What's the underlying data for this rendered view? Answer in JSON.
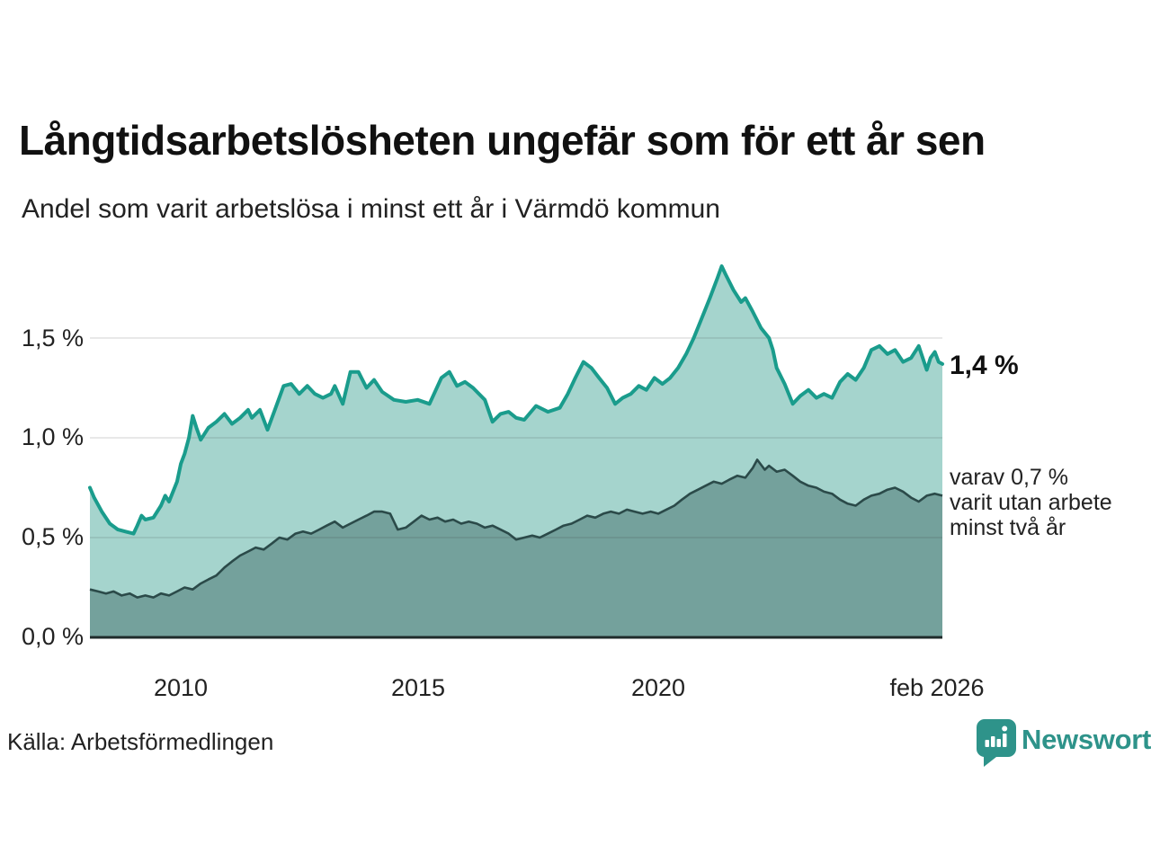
{
  "title": "Långtidsarbetslösheten ungefär som för ett år sen",
  "subtitle": "Andel som varit arbetslösa i minst ett år i Värmdö kommun",
  "source": "Källa: Arbetsförmedlingen",
  "brand": {
    "name": "Newsworthy",
    "color": "#2e938a",
    "icon": "newsworthy-speech-bubble-barchart-icon"
  },
  "annotations": {
    "latest_total": "1,4 %",
    "secondary": [
      "varav 0,7 %",
      "varit utan arbete",
      "minst två år"
    ]
  },
  "colors": {
    "total_line": "#1a9c8c",
    "total_fill": "#a5d4cd",
    "two_year_line": "#2b4a49",
    "two_year_fill": "#74a19c",
    "gridline": "rgba(40,40,40,0.14)",
    "axis_line": "#1f2b2b",
    "text": "#222222"
  },
  "chart_data": {
    "type": "area",
    "title": "Långtidsarbetslösheten ungefär som för ett år sen",
    "subtitle": "Andel som varit arbetslösa i minst ett år i Värmdö kommun",
    "unit": "%",
    "grid": true,
    "x_axis": {
      "range": [
        2008.08,
        2026.08
      ],
      "ticks": [
        {
          "label": "2010",
          "value": 2010
        },
        {
          "label": "2015",
          "value": 2015
        },
        {
          "label": "2020",
          "value": 2020
        },
        {
          "label": "feb 2026",
          "value": 2026.08
        }
      ]
    },
    "y_axis": {
      "range": [
        0,
        1.9
      ],
      "ticks": [
        {
          "label": "0,0 %",
          "value": 0.0
        },
        {
          "label": "0,5 %",
          "value": 0.5
        },
        {
          "label": "1,0 %",
          "value": 1.0
        },
        {
          "label": "1,5 %",
          "value": 1.5
        }
      ]
    },
    "series": [
      {
        "name": "Andel som varit arbetslösa minst ett år",
        "latest_value_label": "1,4 %",
        "points": [
          [
            2008.08,
            0.75
          ],
          [
            2008.17,
            0.7
          ],
          [
            2008.33,
            0.63
          ],
          [
            2008.5,
            0.57
          ],
          [
            2008.67,
            0.54
          ],
          [
            2008.83,
            0.53
          ],
          [
            2009.0,
            0.52
          ],
          [
            2009.08,
            0.56
          ],
          [
            2009.17,
            0.61
          ],
          [
            2009.25,
            0.59
          ],
          [
            2009.42,
            0.6
          ],
          [
            2009.58,
            0.66
          ],
          [
            2009.67,
            0.71
          ],
          [
            2009.75,
            0.68
          ],
          [
            2009.92,
            0.78
          ],
          [
            2010.0,
            0.87
          ],
          [
            2010.08,
            0.92
          ],
          [
            2010.17,
            1.0
          ],
          [
            2010.25,
            1.11
          ],
          [
            2010.33,
            1.05
          ],
          [
            2010.42,
            0.99
          ],
          [
            2010.58,
            1.05
          ],
          [
            2010.75,
            1.08
          ],
          [
            2010.92,
            1.12
          ],
          [
            2011.08,
            1.07
          ],
          [
            2011.25,
            1.1
          ],
          [
            2011.42,
            1.14
          ],
          [
            2011.5,
            1.1
          ],
          [
            2011.67,
            1.14
          ],
          [
            2011.83,
            1.04
          ],
          [
            2012.0,
            1.15
          ],
          [
            2012.17,
            1.26
          ],
          [
            2012.33,
            1.27
          ],
          [
            2012.5,
            1.22
          ],
          [
            2012.67,
            1.26
          ],
          [
            2012.83,
            1.22
          ],
          [
            2013.0,
            1.2
          ],
          [
            2013.17,
            1.22
          ],
          [
            2013.25,
            1.26
          ],
          [
            2013.42,
            1.17
          ],
          [
            2013.58,
            1.33
          ],
          [
            2013.75,
            1.33
          ],
          [
            2013.92,
            1.25
          ],
          [
            2014.08,
            1.29
          ],
          [
            2014.25,
            1.23
          ],
          [
            2014.5,
            1.19
          ],
          [
            2014.75,
            1.18
          ],
          [
            2015.0,
            1.19
          ],
          [
            2015.25,
            1.17
          ],
          [
            2015.5,
            1.3
          ],
          [
            2015.67,
            1.33
          ],
          [
            2015.83,
            1.26
          ],
          [
            2016.0,
            1.28
          ],
          [
            2016.17,
            1.25
          ],
          [
            2016.42,
            1.19
          ],
          [
            2016.58,
            1.08
          ],
          [
            2016.75,
            1.12
          ],
          [
            2016.92,
            1.13
          ],
          [
            2017.08,
            1.1
          ],
          [
            2017.25,
            1.09
          ],
          [
            2017.5,
            1.16
          ],
          [
            2017.75,
            1.13
          ],
          [
            2018.0,
            1.15
          ],
          [
            2018.17,
            1.22
          ],
          [
            2018.33,
            1.3
          ],
          [
            2018.5,
            1.38
          ],
          [
            2018.67,
            1.35
          ],
          [
            2018.83,
            1.3
          ],
          [
            2019.0,
            1.25
          ],
          [
            2019.17,
            1.17
          ],
          [
            2019.33,
            1.2
          ],
          [
            2019.5,
            1.22
          ],
          [
            2019.67,
            1.26
          ],
          [
            2019.83,
            1.24
          ],
          [
            2020.0,
            1.3
          ],
          [
            2020.17,
            1.27
          ],
          [
            2020.33,
            1.3
          ],
          [
            2020.5,
            1.35
          ],
          [
            2020.67,
            1.42
          ],
          [
            2020.83,
            1.5
          ],
          [
            2021.0,
            1.6
          ],
          [
            2021.17,
            1.7
          ],
          [
            2021.33,
            1.8
          ],
          [
            2021.42,
            1.86
          ],
          [
            2021.5,
            1.82
          ],
          [
            2021.67,
            1.74
          ],
          [
            2021.83,
            1.68
          ],
          [
            2021.92,
            1.7
          ],
          [
            2022.08,
            1.63
          ],
          [
            2022.25,
            1.55
          ],
          [
            2022.42,
            1.5
          ],
          [
            2022.5,
            1.44
          ],
          [
            2022.58,
            1.35
          ],
          [
            2022.75,
            1.27
          ],
          [
            2022.92,
            1.17
          ],
          [
            2023.08,
            1.21
          ],
          [
            2023.25,
            1.24
          ],
          [
            2023.42,
            1.2
          ],
          [
            2023.58,
            1.22
          ],
          [
            2023.75,
            1.2
          ],
          [
            2023.92,
            1.28
          ],
          [
            2024.08,
            1.32
          ],
          [
            2024.25,
            1.29
          ],
          [
            2024.42,
            1.35
          ],
          [
            2024.58,
            1.44
          ],
          [
            2024.75,
            1.46
          ],
          [
            2024.92,
            1.42
          ],
          [
            2025.08,
            1.44
          ],
          [
            2025.25,
            1.38
          ],
          [
            2025.42,
            1.4
          ],
          [
            2025.58,
            1.46
          ],
          [
            2025.75,
            1.34
          ],
          [
            2025.83,
            1.4
          ],
          [
            2025.92,
            1.43
          ],
          [
            2026.0,
            1.38
          ],
          [
            2026.08,
            1.37
          ]
        ]
      },
      {
        "name": "varav utan arbete minst två år",
        "latest_value_label": "0,7 %",
        "points": [
          [
            2008.08,
            0.24
          ],
          [
            2008.25,
            0.23
          ],
          [
            2008.42,
            0.22
          ],
          [
            2008.58,
            0.23
          ],
          [
            2008.75,
            0.21
          ],
          [
            2008.92,
            0.22
          ],
          [
            2009.08,
            0.2
          ],
          [
            2009.25,
            0.21
          ],
          [
            2009.42,
            0.2
          ],
          [
            2009.58,
            0.22
          ],
          [
            2009.75,
            0.21
          ],
          [
            2009.92,
            0.23
          ],
          [
            2010.08,
            0.25
          ],
          [
            2010.25,
            0.24
          ],
          [
            2010.42,
            0.27
          ],
          [
            2010.58,
            0.29
          ],
          [
            2010.75,
            0.31
          ],
          [
            2010.92,
            0.35
          ],
          [
            2011.08,
            0.38
          ],
          [
            2011.25,
            0.41
          ],
          [
            2011.42,
            0.43
          ],
          [
            2011.58,
            0.45
          ],
          [
            2011.75,
            0.44
          ],
          [
            2011.92,
            0.47
          ],
          [
            2012.08,
            0.5
          ],
          [
            2012.25,
            0.49
          ],
          [
            2012.42,
            0.52
          ],
          [
            2012.58,
            0.53
          ],
          [
            2012.75,
            0.52
          ],
          [
            2012.92,
            0.54
          ],
          [
            2013.08,
            0.56
          ],
          [
            2013.25,
            0.58
          ],
          [
            2013.42,
            0.55
          ],
          [
            2013.58,
            0.57
          ],
          [
            2013.75,
            0.59
          ],
          [
            2013.92,
            0.61
          ],
          [
            2014.08,
            0.63
          ],
          [
            2014.25,
            0.63
          ],
          [
            2014.42,
            0.62
          ],
          [
            2014.58,
            0.54
          ],
          [
            2014.75,
            0.55
          ],
          [
            2014.92,
            0.58
          ],
          [
            2015.08,
            0.61
          ],
          [
            2015.25,
            0.59
          ],
          [
            2015.42,
            0.6
          ],
          [
            2015.58,
            0.58
          ],
          [
            2015.75,
            0.59
          ],
          [
            2015.92,
            0.57
          ],
          [
            2016.08,
            0.58
          ],
          [
            2016.25,
            0.57
          ],
          [
            2016.42,
            0.55
          ],
          [
            2016.58,
            0.56
          ],
          [
            2016.75,
            0.54
          ],
          [
            2016.92,
            0.52
          ],
          [
            2017.08,
            0.49
          ],
          [
            2017.25,
            0.5
          ],
          [
            2017.42,
            0.51
          ],
          [
            2017.58,
            0.5
          ],
          [
            2017.75,
            0.52
          ],
          [
            2017.92,
            0.54
          ],
          [
            2018.08,
            0.56
          ],
          [
            2018.25,
            0.57
          ],
          [
            2018.42,
            0.59
          ],
          [
            2018.58,
            0.61
          ],
          [
            2018.75,
            0.6
          ],
          [
            2018.92,
            0.62
          ],
          [
            2019.08,
            0.63
          ],
          [
            2019.25,
            0.62
          ],
          [
            2019.42,
            0.64
          ],
          [
            2019.58,
            0.63
          ],
          [
            2019.75,
            0.62
          ],
          [
            2019.92,
            0.63
          ],
          [
            2020.08,
            0.62
          ],
          [
            2020.25,
            0.64
          ],
          [
            2020.42,
            0.66
          ],
          [
            2020.58,
            0.69
          ],
          [
            2020.75,
            0.72
          ],
          [
            2020.92,
            0.74
          ],
          [
            2021.08,
            0.76
          ],
          [
            2021.25,
            0.78
          ],
          [
            2021.42,
            0.77
          ],
          [
            2021.58,
            0.79
          ],
          [
            2021.75,
            0.81
          ],
          [
            2021.92,
            0.8
          ],
          [
            2022.08,
            0.85
          ],
          [
            2022.17,
            0.89
          ],
          [
            2022.33,
            0.84
          ],
          [
            2022.42,
            0.86
          ],
          [
            2022.58,
            0.83
          ],
          [
            2022.75,
            0.84
          ],
          [
            2022.92,
            0.81
          ],
          [
            2023.08,
            0.78
          ],
          [
            2023.25,
            0.76
          ],
          [
            2023.42,
            0.75
          ],
          [
            2023.58,
            0.73
          ],
          [
            2023.75,
            0.72
          ],
          [
            2023.92,
            0.69
          ],
          [
            2024.08,
            0.67
          ],
          [
            2024.25,
            0.66
          ],
          [
            2024.42,
            0.69
          ],
          [
            2024.58,
            0.71
          ],
          [
            2024.75,
            0.72
          ],
          [
            2024.92,
            0.74
          ],
          [
            2025.08,
            0.75
          ],
          [
            2025.25,
            0.73
          ],
          [
            2025.42,
            0.7
          ],
          [
            2025.58,
            0.68
          ],
          [
            2025.75,
            0.71
          ],
          [
            2025.92,
            0.72
          ],
          [
            2026.08,
            0.71
          ]
        ]
      }
    ],
    "legend_position": "right-annotations"
  }
}
